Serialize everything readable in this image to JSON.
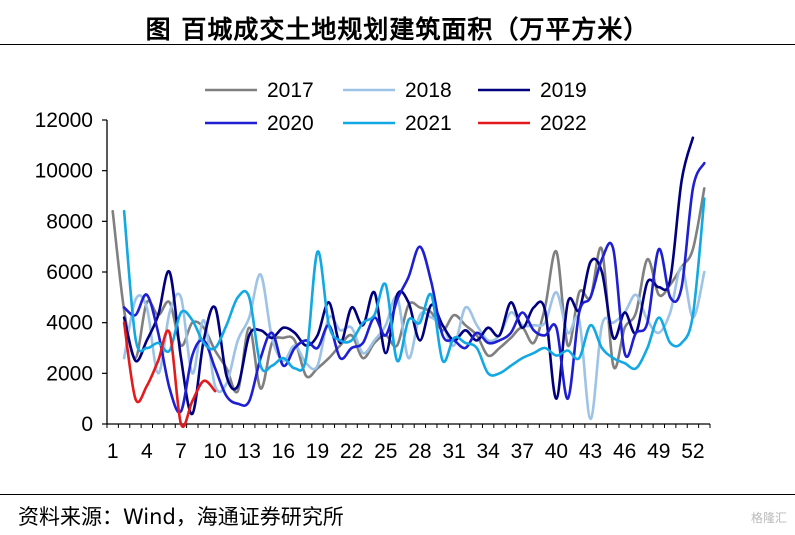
{
  "title": "图  百城成交土地规划建筑面积（万平方米）",
  "source": "资料来源：Wind，海通证券研究所",
  "watermark": "格隆汇",
  "chart_data": {
    "type": "line",
    "title": "图  百城成交土地规划建筑面积（万平方米）",
    "xlabel": "",
    "ylabel": "",
    "ylim": [
      0,
      12000
    ],
    "xlim": [
      1,
      53
    ],
    "yticks": [
      0,
      2000,
      4000,
      6000,
      8000,
      10000,
      12000
    ],
    "xticks": [
      1,
      4,
      7,
      10,
      13,
      16,
      19,
      22,
      25,
      28,
      31,
      34,
      37,
      40,
      43,
      46,
      49,
      52
    ],
    "grid": false,
    "legend_position": "top",
    "series": [
      {
        "name": "2017",
        "color": "#808080",
        "x_start": 1,
        "values": [
          8400,
          4500,
          2600,
          4800,
          4300,
          4800,
          3100,
          4000,
          3800,
          2900,
          2200,
          1300,
          3800,
          1400,
          3200,
          3400,
          3300,
          1900,
          2200,
          2600,
          3100,
          3500,
          2600,
          3200,
          3500,
          3100,
          4700,
          4600,
          4400,
          3700,
          4300,
          3900,
          3500,
          2700,
          3000,
          3400,
          3800,
          3200,
          4600,
          6800,
          3100,
          5200,
          5000,
          6900,
          2300,
          3800,
          4400,
          6500,
          5100,
          5500,
          6200,
          6900,
          9300
        ]
      },
      {
        "name": "2018",
        "color": "#9dc3e6",
        "x_start": 2,
        "values": [
          2600,
          4900,
          4600,
          2000,
          4400,
          5000,
          2000,
          4100,
          1500,
          1600,
          3300,
          4200,
          5900,
          3400,
          2500,
          3100,
          2400,
          2300,
          4200,
          3700,
          3800,
          2800,
          3300,
          3900,
          5000,
          2600,
          4300,
          4200,
          3900,
          3100,
          4600,
          3900,
          3300,
          3500,
          4400,
          3900,
          3900,
          4000,
          5200,
          3600,
          4100,
          200,
          3900,
          4000,
          4400,
          5100,
          4100,
          3600,
          4400,
          6200,
          4200,
          6000
        ]
      },
      {
        "name": "2019",
        "color": "#00007f",
        "x_start": 2,
        "values": [
          4200,
          2500,
          3300,
          4300,
          6000,
          2600,
          400,
          3300,
          4600,
          1900,
          1500,
          3500,
          3700,
          3400,
          3800,
          3600,
          3100,
          3500,
          4800,
          3200,
          4600,
          3900,
          5200,
          2800,
          5100,
          4800,
          3300,
          4700,
          3900,
          3300,
          3700,
          3300,
          3800,
          3500,
          4800,
          3800,
          4600,
          4500,
          1000,
          4800,
          4500,
          6400,
          6000,
          3400,
          4400,
          3600,
          5600,
          5400,
          5700,
          9600,
          11300
        ]
      },
      {
        "name": "2020",
        "color": "#1f1fd2",
        "x_start": 2,
        "values": [
          4600,
          4300,
          5100,
          3600,
          1400,
          500,
          2700,
          3300,
          2200,
          1100,
          800,
          900,
          2600,
          3600,
          2300,
          3000,
          3300,
          3000,
          3900,
          2600,
          3000,
          3200,
          4200,
          3500,
          4900,
          5800,
          7000,
          5600,
          3500,
          3300,
          3000,
          3600,
          3200,
          3300,
          3600,
          4400,
          3700,
          3500,
          3800,
          1000,
          4400,
          5000,
          6500,
          6900,
          2800,
          3600,
          4000,
          6900,
          5000,
          5400,
          9300,
          10300
        ]
      },
      {
        "name": "2021",
        "color": "#11a8e3",
        "x_start": 2,
        "values": [
          8400,
          3400,
          3000,
          3200,
          2900,
          4400,
          4100,
          3200,
          3000,
          3900,
          5000,
          5000,
          2300,
          2300,
          2600,
          2200,
          2600,
          6800,
          3900,
          3300,
          3300,
          4000,
          4300,
          5500,
          2500,
          4100,
          4000,
          5100,
          2500,
          3400,
          3200,
          3000,
          2000,
          2000,
          2300,
          2600,
          2800,
          3000,
          2700,
          2900,
          2600,
          3900,
          3000,
          2600,
          2400,
          2200,
          3000,
          4200,
          3200,
          3200,
          4300,
          8900
        ]
      },
      {
        "name": "2022",
        "color": "#e41a1c",
        "x_start": 2,
        "values": [
          4000,
          1000,
          1500,
          2500,
          3600,
          0,
          900,
          1700,
          1300
        ]
      }
    ]
  }
}
